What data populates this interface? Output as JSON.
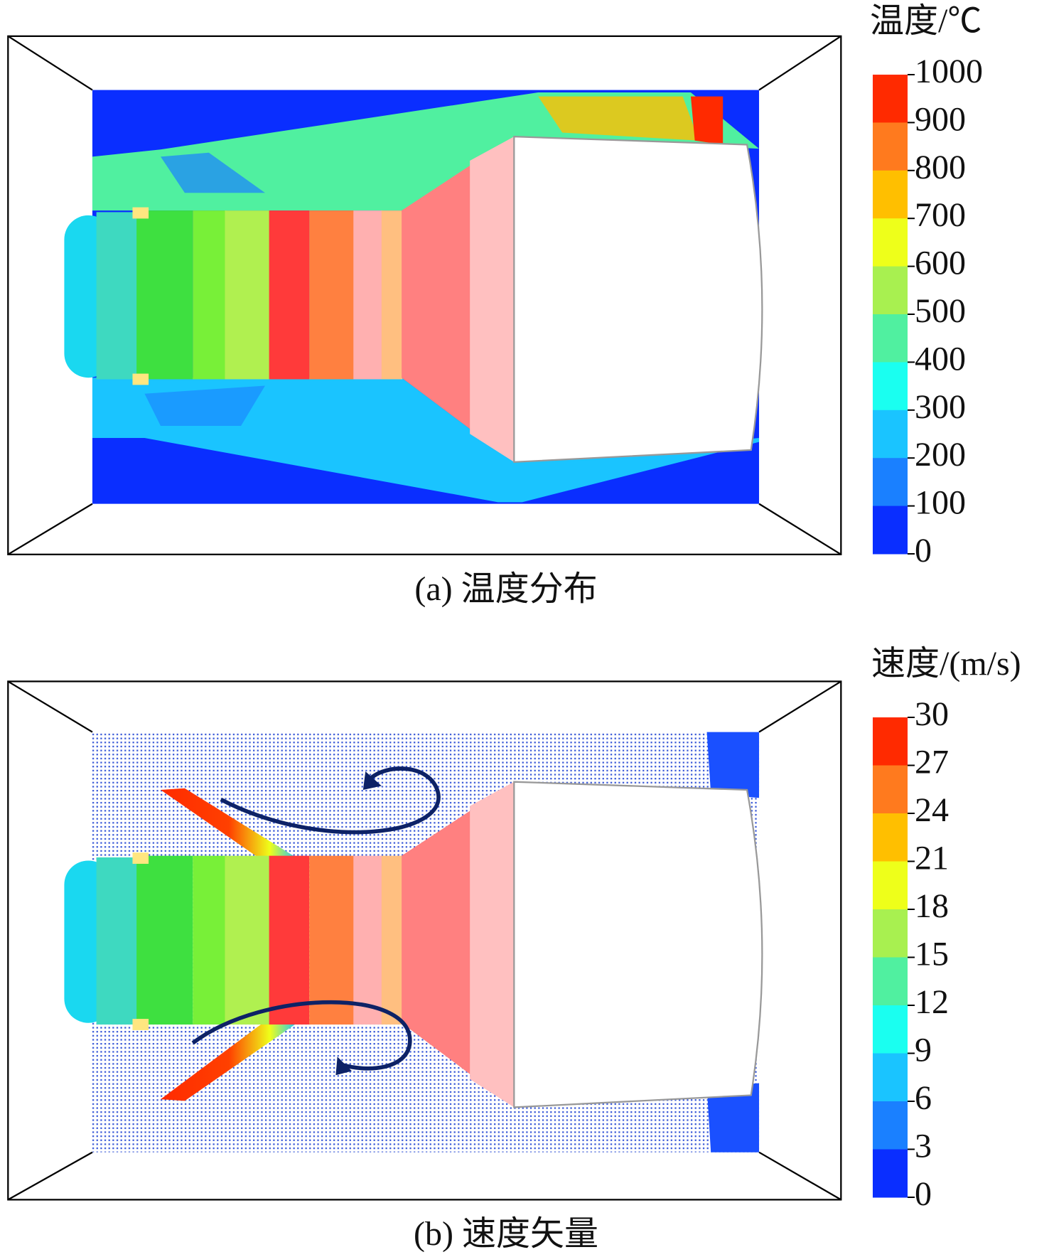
{
  "panels": [
    {
      "caption": "(a) 温度分布",
      "colorbar": {
        "title": "温度/℃",
        "ticks": [
          1000,
          900,
          800,
          700,
          600,
          500,
          400,
          300,
          200,
          100,
          0
        ],
        "colors": [
          "#ff2a00",
          "#ff7a1e",
          "#ffbf00",
          "#eeff1a",
          "#a8f050",
          "#50f0a0",
          "#1afff0",
          "#1ac4ff",
          "#1a80ff",
          "#0a2eff"
        ]
      }
    },
    {
      "caption": "(b) 速度矢量",
      "colorbar": {
        "title": "速度/(m/s)",
        "ticks": [
          30,
          27,
          24,
          21,
          18,
          15,
          12,
          9,
          6,
          3,
          0
        ],
        "colors": [
          "#ff2a00",
          "#ff7a1e",
          "#ffbf00",
          "#eeff1a",
          "#a8f050",
          "#50f0a0",
          "#1afff0",
          "#1ac4ff",
          "#1a80ff",
          "#0a2eff"
        ]
      }
    }
  ]
}
